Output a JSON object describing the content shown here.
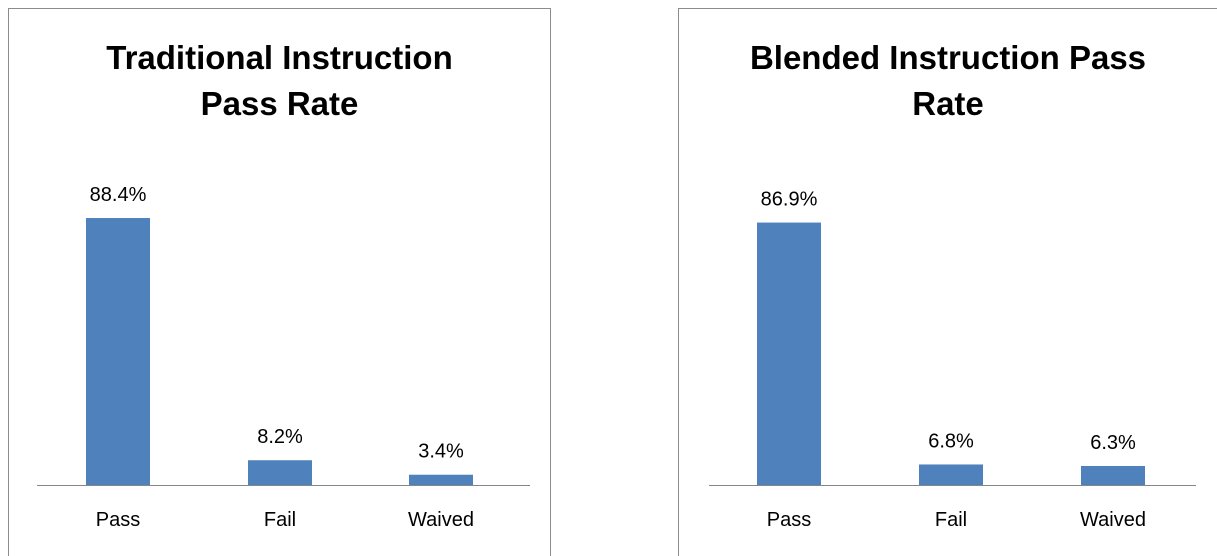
{
  "colors": {
    "bar": "#4f81bd",
    "axis": "#868686",
    "border": "#8c8c8c",
    "text": "#000000"
  },
  "chart_data": [
    {
      "type": "bar",
      "title": "Traditional Instruction Pass Rate",
      "categories": [
        "Pass",
        "Fail",
        "Waived"
      ],
      "values": [
        88.4,
        8.2,
        3.4
      ],
      "data_labels": [
        "88.4%",
        "8.2%",
        "3.4%"
      ],
      "unit": "%",
      "xlabel": "",
      "ylabel": "",
      "ylim": [
        0,
        100
      ],
      "grid": false,
      "legend": "none",
      "y_axis_visible": false
    },
    {
      "type": "bar",
      "title": "Blended Instruction Pass Rate",
      "categories": [
        "Pass",
        "Fail",
        "Waived"
      ],
      "values": [
        86.9,
        6.8,
        6.3
      ],
      "data_labels": [
        "86.9%",
        "6.8%",
        "6.3%"
      ],
      "unit": "%",
      "xlabel": "",
      "ylabel": "",
      "ylim": [
        0,
        100
      ],
      "grid": false,
      "legend": "none",
      "y_axis_visible": false
    }
  ]
}
